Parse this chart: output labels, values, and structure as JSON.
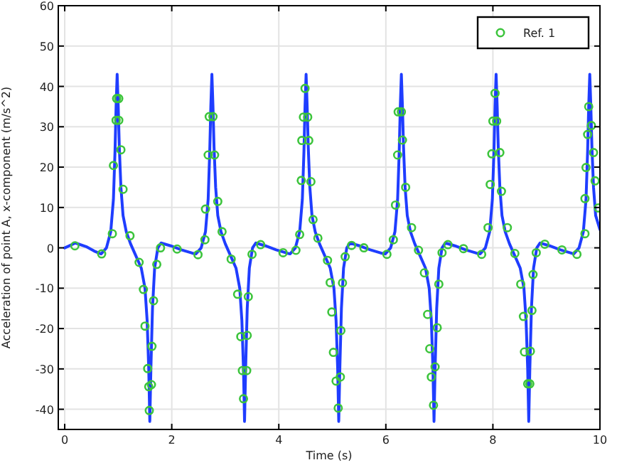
{
  "chart_data": {
    "type": "line",
    "xlabel": "Time (s)",
    "ylabel": "Acceleration of point A, x-component (m/s^2)",
    "xlim": [
      -0.12,
      10
    ],
    "ylim": [
      -45,
      60
    ],
    "xticks": [
      0,
      2,
      4,
      6,
      8,
      10
    ],
    "yticks": [
      -40,
      -30,
      -20,
      -10,
      0,
      10,
      20,
      30,
      40,
      50,
      60
    ],
    "grid": true,
    "legend": "top right",
    "series": [
      {
        "color": "#1f3dff",
        "marker": "none",
        "line_style": "solid",
        "x": [
          0,
          0.2,
          0.4,
          0.55,
          0.68,
          0.78,
          0.86,
          0.91,
          0.94,
          0.96,
          0.98,
          1.0,
          1.02,
          1.05,
          1.09,
          1.15,
          1.23,
          1.33,
          1.43,
          1.5,
          1.54,
          1.57,
          1.59,
          1.61,
          1.64,
          1.68,
          1.74,
          1.8,
          1.98,
          2.18,
          2.38,
          2.45,
          2.55,
          2.63,
          2.68,
          2.71,
          2.73,
          2.75,
          2.77,
          2.79,
          2.82,
          2.86,
          2.92,
          3.0,
          3.1,
          3.2,
          3.27,
          3.31,
          3.34,
          3.36,
          3.38,
          3.41,
          3.45,
          3.51,
          3.57,
          3.75,
          3.95,
          4.15,
          4.21,
          4.31,
          4.39,
          4.44,
          4.47,
          4.49,
          4.51,
          4.53,
          4.55,
          4.58,
          4.62,
          4.68,
          4.76,
          4.86,
          4.96,
          5.03,
          5.07,
          5.1,
          5.12,
          5.14,
          5.17,
          5.21,
          5.27,
          5.33,
          5.51,
          5.71,
          5.91,
          5.99,
          6.09,
          6.17,
          6.22,
          6.25,
          6.27,
          6.29,
          6.31,
          6.33,
          6.36,
          6.4,
          6.46,
          6.54,
          6.64,
          6.74,
          6.81,
          6.85,
          6.88,
          6.9,
          6.92,
          6.95,
          6.99,
          7.05,
          7.11,
          7.29,
          7.49,
          7.69,
          7.76,
          7.86,
          7.94,
          7.99,
          8.02,
          8.04,
          8.06,
          8.08,
          8.1,
          8.13,
          8.17,
          8.23,
          8.31,
          8.41,
          8.51,
          8.58,
          8.62,
          8.65,
          8.67,
          8.69,
          8.72,
          8.76,
          8.82,
          8.88,
          9.06,
          9.26,
          9.46,
          9.51,
          9.61,
          9.69,
          9.74,
          9.77,
          9.79,
          9.81,
          9.83,
          9.85,
          9.88,
          9.92,
          10
        ],
        "values": [
          0,
          1.2,
          0.3,
          -0.8,
          -1.5,
          0,
          4,
          12,
          24,
          35,
          43,
          35,
          25,
          15,
          8,
          4,
          1,
          -2,
          -5,
          -10,
          -18,
          -30,
          -43,
          -30,
          -15,
          -5,
          0,
          1.2,
          0.5,
          -0.5,
          -1.3,
          -1.5,
          0,
          4,
          12,
          24,
          35,
          43,
          35,
          25,
          15,
          8,
          4,
          1,
          -2,
          -5,
          -10,
          -18,
          -30,
          -43,
          -30,
          -15,
          -5,
          0,
          1.2,
          0.5,
          -0.5,
          -1.3,
          -1.5,
          0,
          4,
          12,
          24,
          35,
          43,
          35,
          25,
          15,
          8,
          4,
          1,
          -2,
          -5,
          -10,
          -18,
          -30,
          -43,
          -30,
          -15,
          -5,
          0,
          1.2,
          0.5,
          -0.5,
          -1.3,
          -1.5,
          0,
          4,
          12,
          24,
          35,
          43,
          35,
          25,
          15,
          8,
          4,
          1,
          -2,
          -5,
          -10,
          -18,
          -30,
          -43,
          -30,
          -15,
          -5,
          0,
          1.2,
          0.5,
          -0.5,
          -1.3,
          -1.5,
          0,
          4,
          12,
          24,
          35,
          43,
          35,
          25,
          15,
          8,
          4,
          1,
          -2,
          -5,
          -10,
          -18,
          -30,
          -43,
          -30,
          -15,
          -5,
          0,
          1.2,
          0.5,
          -0.5,
          -1.3,
          -1.5,
          0,
          4,
          12,
          24,
          35,
          43,
          35,
          25,
          15,
          8,
          4.5
        ]
      },
      {
        "type": "scatter",
        "name": "Ref. 1",
        "color": "#3cc43c",
        "marker": "circle",
        "x": [
          0.19,
          0.69,
          0.89,
          0.91,
          0.96,
          1.01,
          0.97,
          1.01,
          1.05,
          1.09,
          1.22,
          1.39,
          1.47,
          1.5,
          1.55,
          1.57,
          1.58,
          1.62,
          1.63,
          1.66,
          1.72,
          1.79,
          2.1,
          2.49,
          2.62,
          2.63,
          2.68,
          2.8,
          2.7,
          2.77,
          2.86,
          2.94,
          3.11,
          3.23,
          3.29,
          3.32,
          3.4,
          3.34,
          3.41,
          3.43,
          3.5,
          3.66,
          4.08,
          4.32,
          4.39,
          4.42,
          4.43,
          4.46,
          4.49,
          4.54,
          4.56,
          4.6,
          4.64,
          4.73,
          4.91,
          4.96,
          4.99,
          5.02,
          5.07,
          5.11,
          5.15,
          5.16,
          5.19,
          5.24,
          5.36,
          5.59,
          6.02,
          6.14,
          6.18,
          6.22,
          6.23,
          6.29,
          6.31,
          6.37,
          6.48,
          6.61,
          6.72,
          6.78,
          6.82,
          6.85,
          6.89,
          6.92,
          6.96,
          6.99,
          7.05,
          7.16,
          7.45,
          7.79,
          7.91,
          7.95,
          7.98,
          8.0,
          8.04,
          8.07,
          8.13,
          8.16,
          8.27,
          8.41,
          8.52,
          8.57,
          8.59,
          8.65,
          8.69,
          8.7,
          8.73,
          8.75,
          8.81,
          8.97,
          9.29,
          9.57,
          9.72,
          9.72,
          9.74,
          9.77,
          9.79,
          9.84,
          9.88,
          9.91,
          9.97
        ],
        "values": [
          0.5,
          -1.5,
          3.5,
          20.4,
          31.6,
          31.6,
          37,
          37,
          24.3,
          14.5,
          3,
          -3.6,
          -10.3,
          -19.4,
          -29.9,
          -34.4,
          -40.3,
          -33.9,
          -24.4,
          -13.1,
          -4.1,
          0,
          -0.3,
          -1.7,
          2,
          9.6,
          23,
          23,
          32.5,
          32.5,
          11.5,
          4,
          -2.8,
          -11.5,
          -22,
          -30.4,
          -30.4,
          -37.4,
          -21.7,
          -12.1,
          -1.6,
          0.8,
          -1.2,
          -0.6,
          3.3,
          16.7,
          26.6,
          32.4,
          39.5,
          32.4,
          26.6,
          16.4,
          7,
          2.4,
          -3.1,
          -8.6,
          -15.9,
          -25.9,
          -33,
          -39.7,
          -32,
          -20.5,
          -8.7,
          -2.2,
          0.6,
          0,
          -1.6,
          2,
          10.6,
          23,
          33.7,
          33.7,
          26.7,
          15,
          5,
          -0.6,
          -6.2,
          -16.5,
          -25,
          -32,
          -39,
          -29.5,
          -19.8,
          -9,
          -1.2,
          0.8,
          -0.2,
          -1.6,
          5,
          15.7,
          23.3,
          31.4,
          38.3,
          31.4,
          23.6,
          14,
          5,
          -1.4,
          -9,
          -17,
          -25.8,
          -33.7,
          -33.7,
          -25.6,
          -15.5,
          -6.6,
          -1.2,
          0.9,
          -0.5,
          -1.6,
          3.5,
          12.2,
          19.9,
          28.1,
          35,
          30.3,
          23.6,
          16.6,
          9.9
        ]
      }
    ]
  }
}
